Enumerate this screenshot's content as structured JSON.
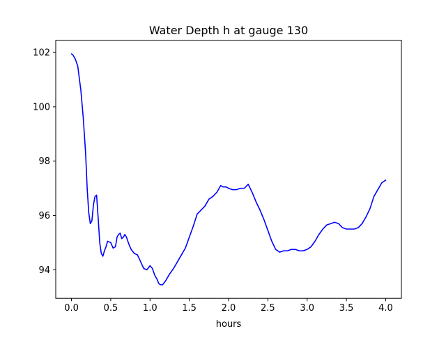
{
  "chart_data": {
    "type": "line",
    "title": "Water Depth h at gauge 130",
    "xlabel": "hours",
    "ylabel": "",
    "xlim": [
      -0.2,
      4.2
    ],
    "ylim": [
      92.95,
      102.45
    ],
    "xticks": [
      0.0,
      0.5,
      1.0,
      1.5,
      2.0,
      2.5,
      3.0,
      3.5,
      4.0
    ],
    "xtick_labels": [
      "0.0",
      "0.5",
      "1.0",
      "1.5",
      "2.0",
      "2.5",
      "3.0",
      "3.5",
      "4.0"
    ],
    "yticks": [
      94,
      96,
      98,
      100,
      102
    ],
    "ytick_labels": [
      "94",
      "96",
      "98",
      "100",
      "102"
    ],
    "grid": false,
    "legend": "none",
    "series": [
      {
        "color": "#0000ff",
        "x": [
          0.0,
          0.02,
          0.05,
          0.08,
          0.1,
          0.12,
          0.15,
          0.18,
          0.2,
          0.22,
          0.24,
          0.26,
          0.28,
          0.3,
          0.32,
          0.34,
          0.36,
          0.38,
          0.4,
          0.42,
          0.44,
          0.46,
          0.5,
          0.53,
          0.56,
          0.58,
          0.6,
          0.62,
          0.64,
          0.66,
          0.68,
          0.7,
          0.73,
          0.76,
          0.8,
          0.84,
          0.88,
          0.92,
          0.96,
          1.0,
          1.03,
          1.06,
          1.09,
          1.11,
          1.13,
          1.16,
          1.2,
          1.25,
          1.3,
          1.35,
          1.4,
          1.45,
          1.5,
          1.55,
          1.6,
          1.65,
          1.7,
          1.75,
          1.8,
          1.85,
          1.9,
          1.93,
          1.97,
          2.0,
          2.05,
          2.1,
          2.15,
          2.2,
          2.25,
          2.3,
          2.35,
          2.4,
          2.45,
          2.5,
          2.55,
          2.6,
          2.65,
          2.7,
          2.75,
          2.8,
          2.85,
          2.9,
          2.95,
          3.0,
          3.05,
          3.1,
          3.15,
          3.2,
          3.25,
          3.3,
          3.35,
          3.4,
          3.45,
          3.5,
          3.55,
          3.6,
          3.65,
          3.7,
          3.75,
          3.8,
          3.85,
          3.9,
          3.95,
          4.0
        ],
        "values": [
          101.95,
          101.9,
          101.75,
          101.5,
          101.05,
          100.6,
          99.6,
          98.3,
          97.0,
          96.1,
          95.7,
          95.8,
          96.4,
          96.7,
          96.75,
          95.9,
          95.0,
          94.6,
          94.5,
          94.7,
          94.85,
          95.05,
          95.0,
          94.8,
          94.85,
          95.2,
          95.3,
          95.35,
          95.15,
          95.2,
          95.3,
          95.2,
          94.95,
          94.75,
          94.6,
          94.55,
          94.3,
          94.05,
          94.0,
          94.15,
          94.05,
          93.8,
          93.65,
          93.5,
          93.45,
          93.45,
          93.6,
          93.85,
          94.05,
          94.3,
          94.55,
          94.8,
          95.2,
          95.6,
          96.05,
          96.2,
          96.35,
          96.6,
          96.7,
          96.85,
          97.1,
          97.05,
          97.05,
          97.0,
          96.95,
          96.95,
          97.0,
          97.0,
          97.15,
          96.85,
          96.5,
          96.2,
          95.85,
          95.45,
          95.05,
          94.75,
          94.65,
          94.7,
          94.7,
          94.75,
          94.75,
          94.7,
          94.7,
          94.75,
          94.85,
          95.05,
          95.3,
          95.5,
          95.65,
          95.7,
          95.75,
          95.7,
          95.55,
          95.5,
          95.5,
          95.5,
          95.55,
          95.7,
          95.95,
          96.25,
          96.7,
          96.95,
          97.2,
          97.3
        ]
      }
    ]
  }
}
